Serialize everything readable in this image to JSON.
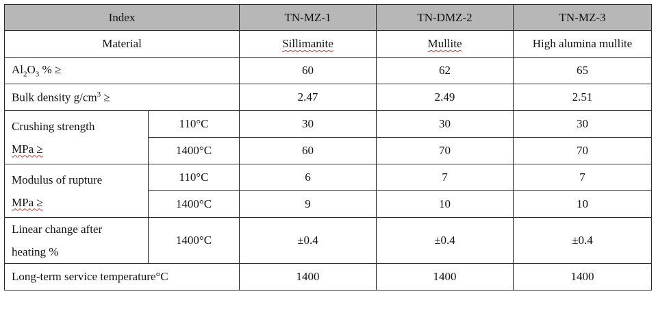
{
  "headers": {
    "index": "Index",
    "col1": "TN-MZ-1",
    "col2": "TN-DMZ-2",
    "col3": "TN-MZ-3"
  },
  "material": {
    "label": "Material",
    "v1": "Sillimanite",
    "v2": "Mullite",
    "v3": "High alumina mullite"
  },
  "al2o3": {
    "label_prefix": "Al",
    "sub1": "2",
    "mid": "O",
    "sub2": "3",
    "label_suffix": " % ≥",
    "v1": "60",
    "v2": "62",
    "v3": "65"
  },
  "bulk": {
    "label_prefix": "Bulk density g/cm",
    "sup": "3",
    "label_suffix": " ≥",
    "v1": "2.47",
    "v2": "2.49",
    "v3": "2.51"
  },
  "crushing": {
    "label_line1": "Crushing strength",
    "label_line2": "MPa ≥",
    "rows": [
      {
        "temp": "110°C",
        "v1": "30",
        "v2": "30",
        "v3": "30"
      },
      {
        "temp": "1400°C",
        "v1": "60",
        "v2": "70",
        "v3": "70"
      }
    ]
  },
  "rupture": {
    "label_line1": "Modulus of rupture",
    "label_line2": "MPa ≥",
    "rows": [
      {
        "temp": "110°C",
        "v1": "6",
        "v2": "7",
        "v3": "7"
      },
      {
        "temp": "1400°C",
        "v1": "9",
        "v2": "10",
        "v3": "10"
      }
    ]
  },
  "linear": {
    "label_line1": "Linear change after",
    "label_line2": "heating %",
    "temp": "1400°C",
    "v1": "±0.4",
    "v2": "±0.4",
    "v3": "±0.4"
  },
  "service": {
    "label": "Long-term service temperature°C",
    "v1": "1400",
    "v2": "1400",
    "v3": "1400"
  }
}
